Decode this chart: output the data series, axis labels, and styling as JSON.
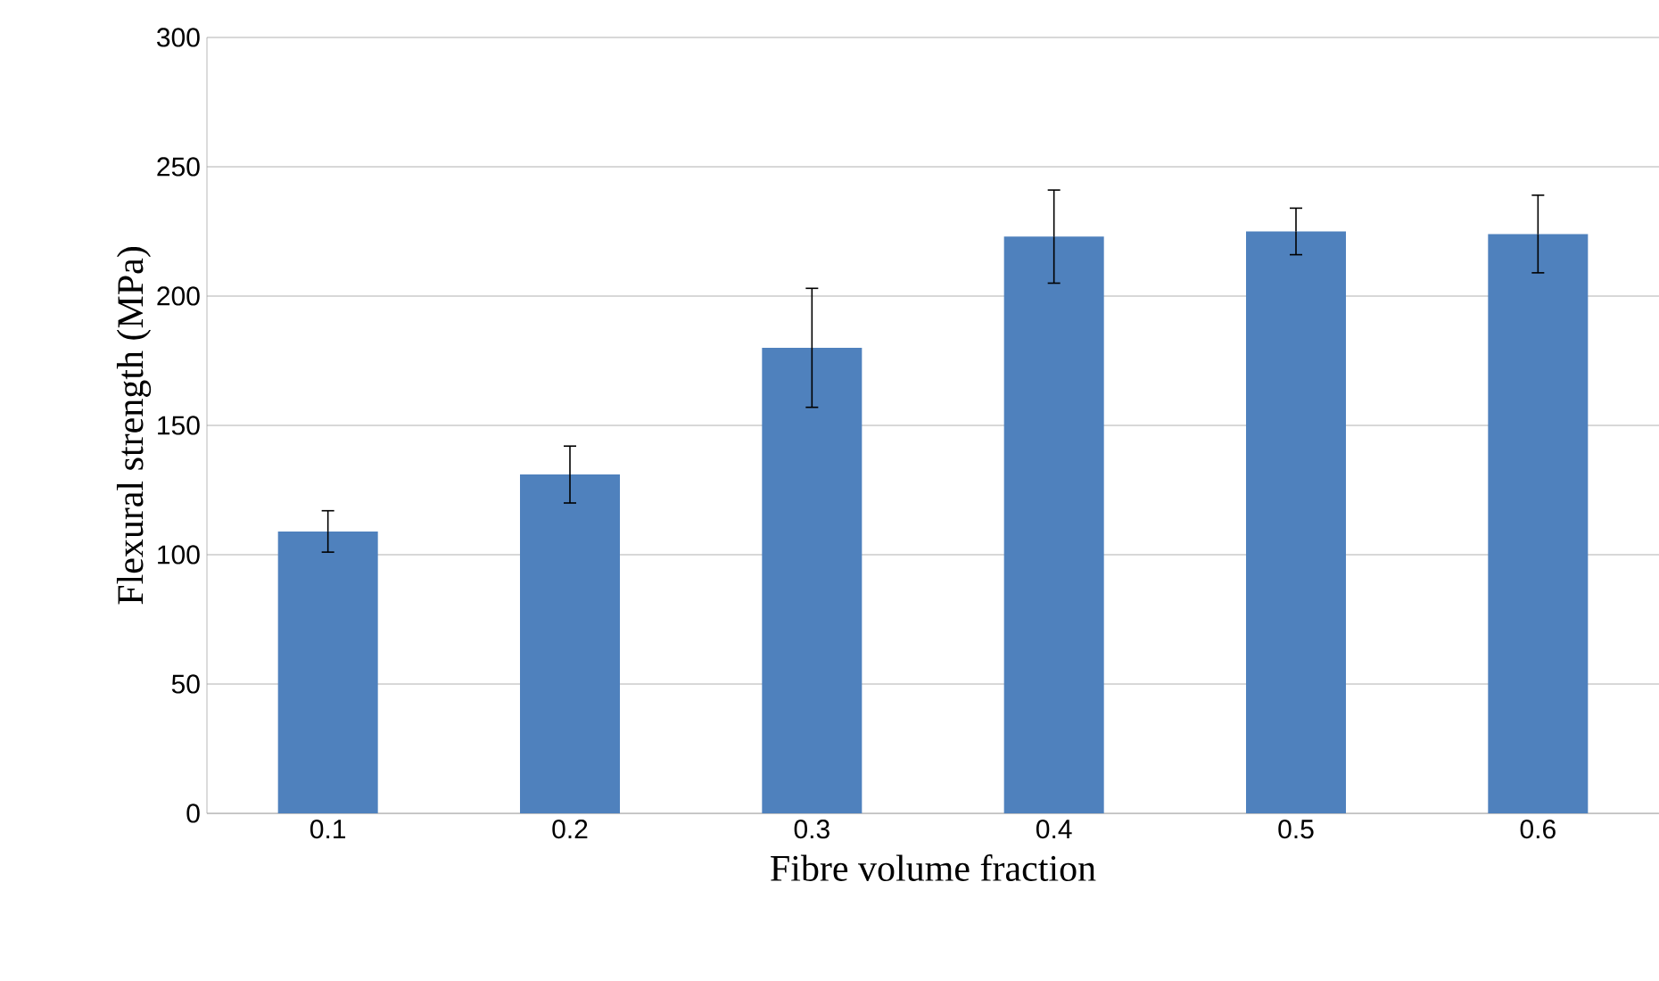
{
  "chart_data": {
    "type": "bar",
    "xlabel": "Fibre volume fraction",
    "ylabel": "Flexural strength (MPa)",
    "categories": [
      "0.1",
      "0.2",
      "0.3",
      "0.4",
      "0.5",
      "0.6"
    ],
    "values": [
      109,
      131,
      180,
      223,
      225,
      224
    ],
    "errors": [
      8,
      11,
      23,
      18,
      9,
      15
    ],
    "color": "#4f81bd",
    "ylim": [
      0,
      300
    ],
    "yticks": [
      0,
      50,
      100,
      150,
      200,
      250,
      300
    ],
    "grid": "y"
  }
}
